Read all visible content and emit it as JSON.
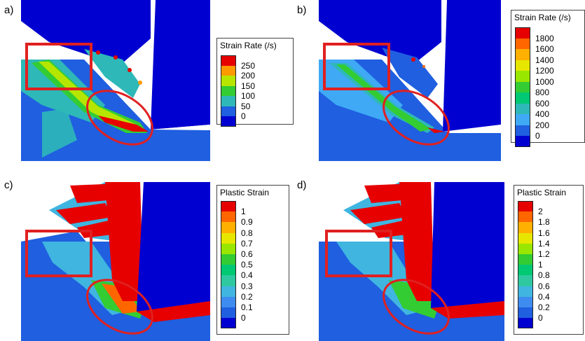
{
  "panels": [
    {
      "label": "a)",
      "legend": {
        "title": "Strain Rate (/s)",
        "ticks": [
          "250",
          "200",
          "150",
          "100",
          "50",
          "0"
        ],
        "colors": [
          "#e60000",
          "#ff9900",
          "#b6e600",
          "#33cc33",
          "#2eb8b8",
          "#1f5fe0",
          "#0000d0"
        ]
      }
    },
    {
      "label": "b)",
      "legend": {
        "title": "Strain Rate (/s)",
        "ticks": [
          "1800",
          "1600",
          "1400",
          "1200",
          "1000",
          "800",
          "600",
          "400",
          "200",
          "0"
        ],
        "colors": [
          "#e60000",
          "#ff6600",
          "#ffb000",
          "#e6e600",
          "#99e600",
          "#33cc33",
          "#00c873",
          "#2eb8b8",
          "#3fa9f5",
          "#1f5fe0",
          "#0000d0"
        ]
      }
    },
    {
      "label": "c)",
      "legend": {
        "title": "Plastic Strain",
        "ticks": [
          "1",
          "0.9",
          "0.8",
          "0.7",
          "0.6",
          "0.5",
          "0.4",
          "0.3",
          "0.2",
          "0.1",
          "0"
        ],
        "colors": [
          "#e60000",
          "#ff6600",
          "#ffb000",
          "#e6e600",
          "#99e600",
          "#33cc33",
          "#00c873",
          "#2ec8a0",
          "#3fb5e0",
          "#3f8cf0",
          "#1f5fe0",
          "#0000d0"
        ]
      }
    },
    {
      "label": "d)",
      "legend": {
        "title": "Plastic Strain",
        "ticks": [
          "2",
          "1.8",
          "1.6",
          "1.4",
          "1.2",
          "1",
          "0.8",
          "0.6",
          "0.4",
          "0.2",
          "0"
        ],
        "colors": [
          "#e60000",
          "#ff6600",
          "#ffb000",
          "#e6e600",
          "#99e600",
          "#33cc33",
          "#00c873",
          "#2ec8a0",
          "#3fb5e0",
          "#3f8cf0",
          "#1f5fe0",
          "#0000d0"
        ]
      }
    }
  ]
}
